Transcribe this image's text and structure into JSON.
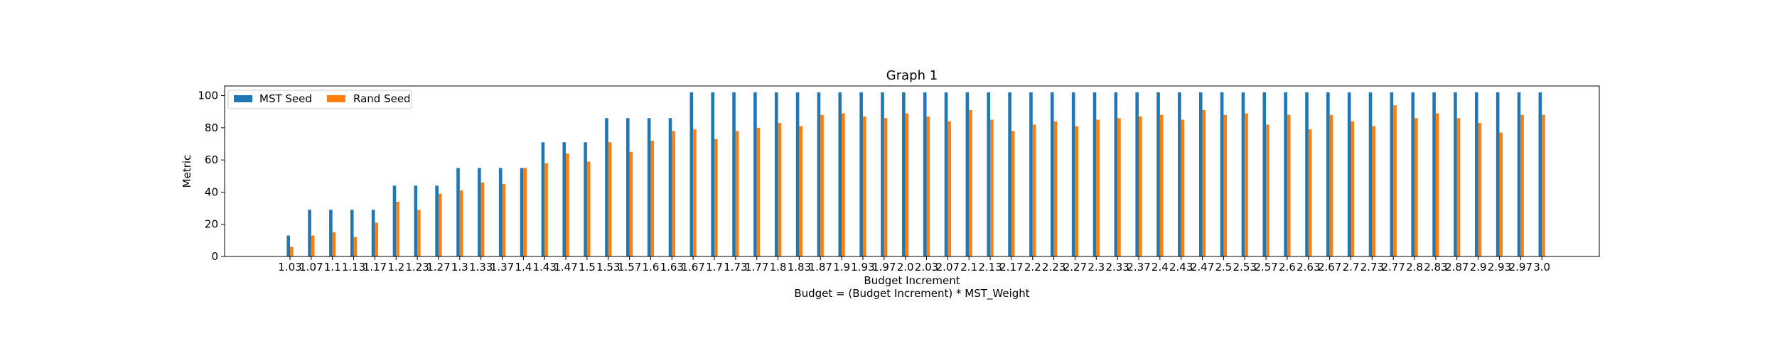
{
  "chart_data": {
    "type": "bar",
    "title": "Graph 1",
    "xlabel": "Budget Increment",
    "xlabel_line2": "Budget = (Budget Increment) * MST_Weight",
    "ylabel": "Metric",
    "ylim": [
      0,
      106
    ],
    "yticks": [
      "0",
      "20",
      "40",
      "60",
      "80",
      "100"
    ],
    "legend_position": "top-left",
    "categories": [
      "1.03",
      "1.07",
      "1.1",
      "1.13",
      "1.17",
      "1.2",
      "1.23",
      "1.27",
      "1.3",
      "1.33",
      "1.37",
      "1.4",
      "1.43",
      "1.47",
      "1.5",
      "1.53",
      "1.57",
      "1.6",
      "1.63",
      "1.67",
      "1.7",
      "1.73",
      "1.77",
      "1.8",
      "1.83",
      "1.87",
      "1.9",
      "1.93",
      "1.97",
      "2.0",
      "2.03",
      "2.07",
      "2.1",
      "2.13",
      "2.17",
      "2.2",
      "2.23",
      "2.27",
      "2.3",
      "2.33",
      "2.37",
      "2.4",
      "2.43",
      "2.47",
      "2.5",
      "2.53",
      "2.57",
      "2.6",
      "2.63",
      "2.67",
      "2.7",
      "2.73",
      "2.77",
      "2.8",
      "2.83",
      "2.87",
      "2.9",
      "2.93",
      "2.97",
      "3.0"
    ],
    "series": [
      {
        "name": "MST Seed",
        "color": "#1f77b4",
        "values": [
          13,
          29,
          29,
          29,
          29,
          44,
          44,
          44,
          55,
          55,
          55,
          55,
          71,
          71,
          71,
          86,
          86,
          86,
          86,
          102,
          102,
          102,
          102,
          102,
          102,
          102,
          102,
          102,
          102,
          102,
          102,
          102,
          102,
          102,
          102,
          102,
          102,
          102,
          102,
          102,
          102,
          102,
          102,
          102,
          102,
          102,
          102,
          102,
          102,
          102,
          102,
          102,
          102,
          102,
          102,
          102,
          102,
          102,
          102,
          102
        ]
      },
      {
        "name": "Rand Seed",
        "color": "#ff7f0e",
        "values": [
          6,
          13,
          15,
          12,
          21,
          34,
          29,
          39,
          41,
          46,
          45,
          55,
          58,
          64,
          59,
          71,
          65,
          72,
          78,
          79,
          73,
          78,
          80,
          83,
          81,
          88,
          89,
          87,
          86,
          89,
          87,
          84,
          91,
          85,
          78,
          82,
          84,
          81,
          85,
          86,
          87,
          88,
          85,
          91,
          88,
          89,
          82,
          88,
          79,
          88,
          84,
          81,
          94,
          86,
          89,
          86,
          83,
          77,
          88,
          88
        ]
      }
    ]
  }
}
